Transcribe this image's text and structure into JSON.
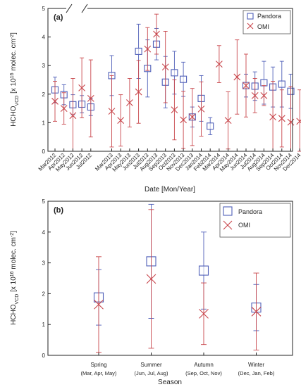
{
  "colors": {
    "pandora": "#4f5fb8",
    "omi": "#c8454a",
    "axis": "#222222"
  },
  "chart_data": [
    {
      "type": "scatter",
      "panel_label": "(a)",
      "xlabel": "Date [Mon/Year]",
      "ylabel_main": "HCHO",
      "ylabel_sub": "VCD",
      "ylabel_rest": " [x 10",
      "ylabel_exp": "16",
      "ylabel_tail": " molec. cm",
      "ylabel_exp2": "-2",
      "ylabel_close": "]",
      "ylim": [
        0,
        5
      ],
      "yticks": [
        0,
        1,
        2,
        3,
        4,
        5
      ],
      "axis_break": "between Jul2012 and Mar2013",
      "legend_position": "top-right",
      "categories": [
        "Mar2012",
        "Apr2012",
        "May2012",
        "Jun2012",
        "Jul2012",
        "Mar2013",
        "Apr2013",
        "May2013",
        "Jun2013",
        "Jul2013",
        "Aug2013",
        "Sep2013",
        "Oct2013",
        "Nov2013",
        "Dec2013",
        "Jan2014",
        "Feb2014",
        "Mar2014",
        "Apr2014",
        "May2014",
        "Jun2014",
        "Jul2014",
        "Aug2014",
        "Sep2014",
        "Oct2014",
        "Nov2014",
        "Dec2014"
      ],
      "series": [
        {
          "name": "Pandora",
          "marker": "square",
          "values": [
            2.15,
            1.98,
            1.63,
            1.65,
            1.55,
            2.65,
            null,
            null,
            3.5,
            2.9,
            3.75,
            2.42,
            2.75,
            2.52,
            1.2,
            1.85,
            0.88,
            null,
            null,
            null,
            2.3,
            2.28,
            2.4,
            2.25,
            2.35,
            2.1,
            null
          ],
          "err": [
            0.45,
            0.35,
            0.35,
            0.3,
            0.3,
            0.7,
            null,
            null,
            0.95,
            1.0,
            0.55,
            0.9,
            0.75,
            0.6,
            0.35,
            0.8,
            0.3,
            null,
            null,
            null,
            0.4,
            0.5,
            0.75,
            0.7,
            0.8,
            0.6,
            null
          ]
        },
        {
          "name": "OMI",
          "marker": "x",
          "values": [
            1.75,
            1.5,
            1.25,
            2.22,
            1.85,
            1.4,
            1.08,
            1.7,
            2.08,
            3.58,
            4.1,
            2.95,
            1.45,
            1.1,
            1.2,
            1.48,
            null,
            3.05,
            1.08,
            2.6,
            2.3,
            1.95,
            1.95,
            1.2,
            1.15,
            1.02,
            1.05
          ],
          "err": [
            0.7,
            0.55,
            1.3,
            1.05,
            1.35,
            1.25,
            0.9,
            0.85,
            1.1,
            0.75,
            0.7,
            1.25,
            1.05,
            1.0,
            1.0,
            0.95,
            null,
            0.65,
            1.0,
            1.3,
            1.1,
            0.6,
            0.35,
            1.25,
            1.0,
            1.25,
            1.1
          ]
        }
      ]
    },
    {
      "type": "scatter",
      "panel_label": "(b)",
      "xlabel": "Season",
      "ylabel_main": "HCHO",
      "ylabel_sub": "VCD",
      "ylabel_rest": " [x 10",
      "ylabel_exp": "16",
      "ylabel_tail": " molec. cm",
      "ylabel_exp2": "-2",
      "ylabel_close": "]",
      "ylim": [
        0,
        5
      ],
      "yticks": [
        0,
        1,
        2,
        3,
        4,
        5
      ],
      "legend_position": "top-right",
      "categories": [
        "Spring",
        "Summer",
        "Autumn",
        "Winter"
      ],
      "category_sublabels": [
        "(Mar, Apr, May)",
        "(Jun, Jul, Aug)",
        "(Sep, Oct, Nov)",
        "(Dec, Jan, Feb)"
      ],
      "series": [
        {
          "name": "Pandora",
          "marker": "square",
          "values": [
            1.88,
            3.05,
            2.75,
            1.55
          ],
          "err": [
            0.9,
            1.85,
            1.25,
            0.75
          ]
        },
        {
          "name": "OMI",
          "marker": "x",
          "values": [
            1.65,
            2.48,
            1.35,
            1.42
          ],
          "err": [
            1.55,
            2.25,
            1.0,
            1.25
          ]
        }
      ]
    }
  ]
}
